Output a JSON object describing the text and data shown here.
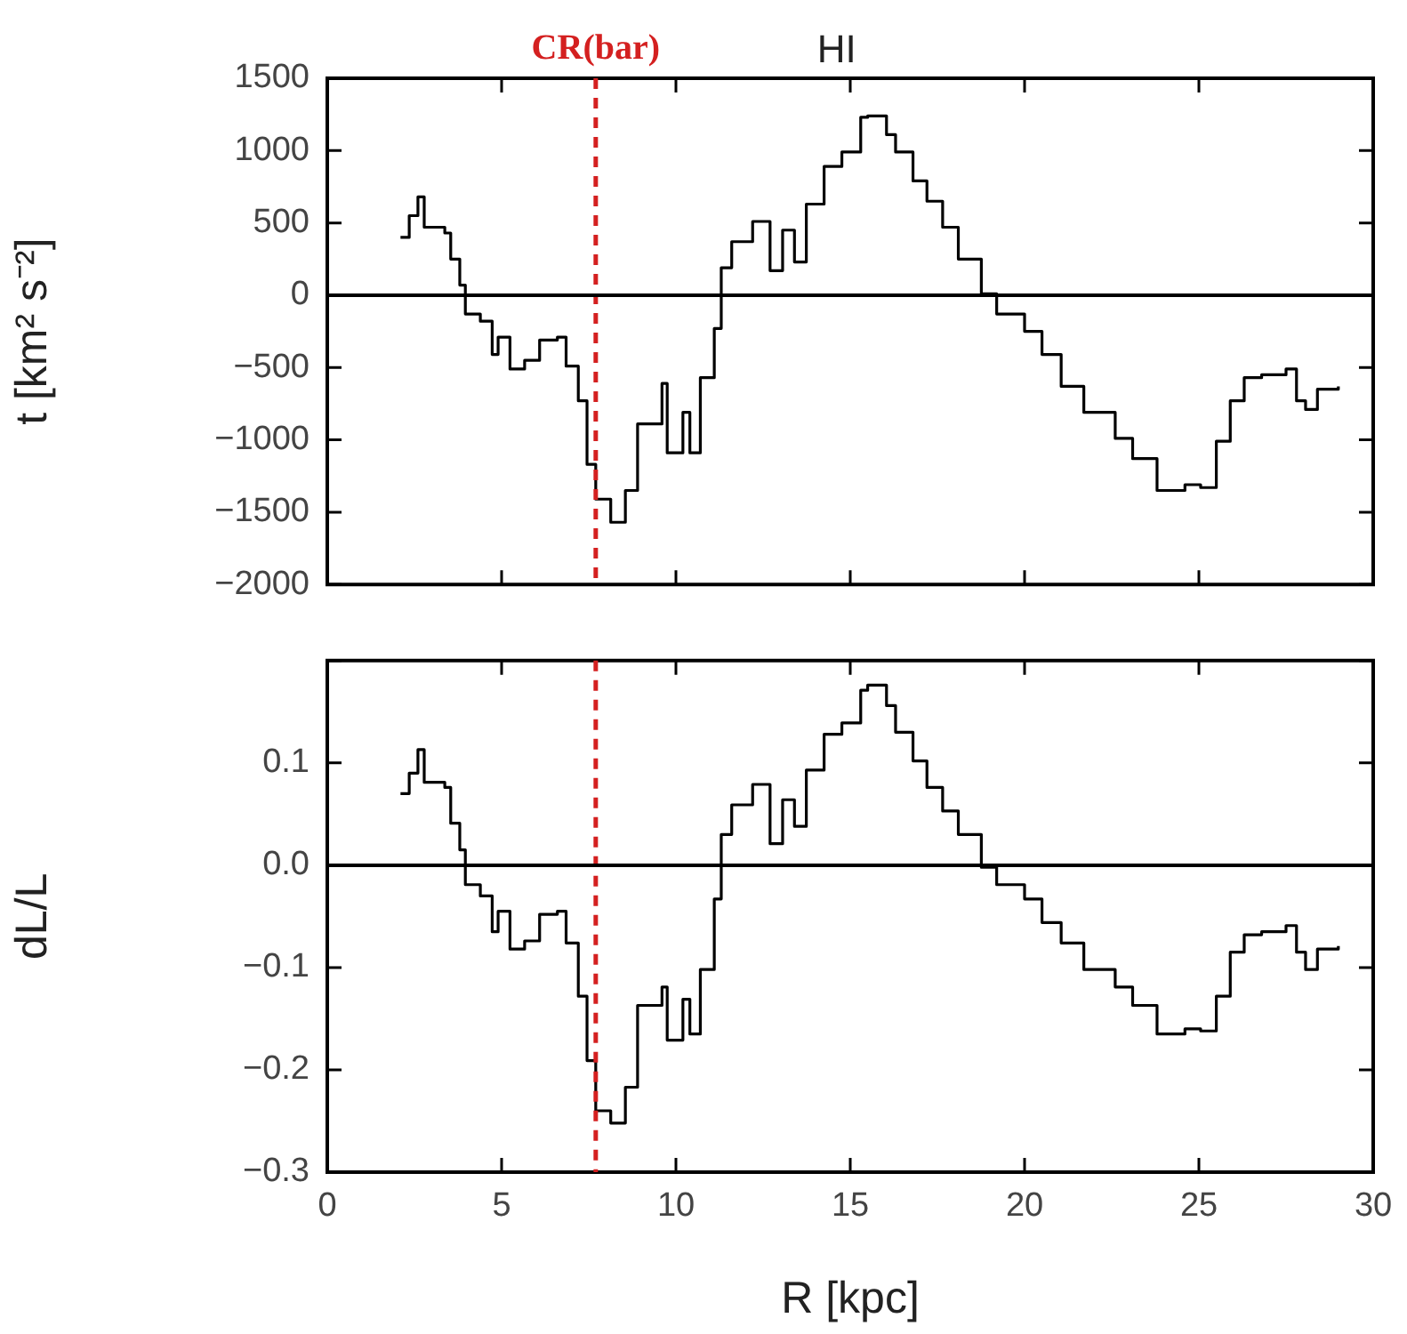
{
  "chart_data": [
    {
      "type": "step",
      "ylabel": "t [km² s⁻²]",
      "xlim": [
        0,
        30
      ],
      "xticks": [
        0,
        5,
        10,
        15,
        20,
        25,
        30
      ],
      "ylim": [
        -2000,
        1500
      ],
      "yticks": [
        -2000,
        -1500,
        -1000,
        -500,
        0,
        500,
        1000,
        1500
      ],
      "tick_labels": "y",
      "grid": false,
      "legend": false,
      "marker": "none",
      "line_style": "solid",
      "series": [
        {
          "color": "#000000",
          "x": [
            2.1,
            2.35,
            2.6,
            2.78,
            3.37,
            3.54,
            3.8,
            3.96,
            4.39,
            4.73,
            4.9,
            5.24,
            5.66,
            6.09,
            6.6,
            6.85,
            7.2,
            7.45,
            7.7,
            8.13,
            8.55,
            8.9,
            9.6,
            9.75,
            10.2,
            10.4,
            10.7,
            11.1,
            11.3,
            11.6,
            12.2,
            12.7,
            13.06,
            13.4,
            13.74,
            14.25,
            14.76,
            15.3,
            15.5,
            16.04,
            16.3,
            16.8,
            17.2,
            17.65,
            18.1,
            18.76,
            19.2,
            20.0,
            20.5,
            21.05,
            21.7,
            22.6,
            23.1,
            23.8,
            24.6,
            25.05,
            25.5,
            25.9,
            26.3,
            26.8,
            27.5,
            27.8,
            28.06,
            28.4,
            29.0
          ],
          "values": [
            400,
            550,
            680,
            470,
            430,
            250,
            70,
            -130,
            -180,
            -410,
            -290,
            -510,
            -450,
            -310,
            -290,
            -490,
            -730,
            -1170,
            -1410,
            -1570,
            -1350,
            -890,
            -610,
            -1090,
            -810,
            -1090,
            -570,
            -230,
            190,
            370,
            510,
            170,
            450,
            230,
            630,
            890,
            990,
            1230,
            1240,
            1110,
            990,
            790,
            650,
            470,
            250,
            10,
            -130,
            -250,
            -410,
            -630,
            -810,
            -990,
            -1130,
            -1350,
            -1310,
            -1330,
            -1010,
            -730,
            -570,
            -550,
            -510,
            -730,
            -790,
            -650,
            -630
          ]
        }
      ],
      "ref_lines": [
        {
          "axis": "x",
          "value": 7.7,
          "label": "CR(bar)",
          "color": "#d42020",
          "line_style": "dashed"
        },
        {
          "axis": "y",
          "value": 0,
          "color": "#000000",
          "line_style": "solid"
        }
      ],
      "annotations": [
        "HI"
      ]
    },
    {
      "type": "step",
      "xlabel": "R [kpc]",
      "ylabel": "dL/L",
      "xlim": [
        0,
        30
      ],
      "xticks": [
        0,
        5,
        10,
        15,
        20,
        25,
        30
      ],
      "ylim": [
        -0.3,
        0.2
      ],
      "yticks": [
        -0.3,
        -0.2,
        -0.1,
        {
          "value": 0,
          "label": "0.0"
        },
        0.1,
        {
          "value": 0.2,
          "label": null
        }
      ],
      "grid": false,
      "legend": false,
      "marker": "none",
      "line_style": "solid",
      "series": [
        {
          "color": "#000000",
          "x": [
            2.1,
            2.35,
            2.6,
            2.78,
            3.37,
            3.54,
            3.8,
            3.96,
            4.39,
            4.73,
            4.9,
            5.24,
            5.66,
            6.09,
            6.6,
            6.85,
            7.2,
            7.45,
            7.7,
            8.13,
            8.55,
            8.9,
            9.6,
            9.75,
            10.2,
            10.4,
            10.7,
            11.1,
            11.3,
            11.6,
            12.2,
            12.7,
            13.06,
            13.4,
            13.74,
            14.25,
            14.76,
            15.3,
            15.5,
            16.04,
            16.3,
            16.8,
            17.2,
            17.65,
            18.1,
            18.76,
            19.2,
            20.0,
            20.5,
            21.05,
            21.7,
            22.6,
            23.1,
            23.8,
            24.6,
            25.05,
            25.5,
            25.9,
            26.3,
            26.8,
            27.5,
            27.8,
            28.06,
            28.4,
            29.0
          ],
          "values": [
            0.07,
            0.09,
            0.113,
            0.081,
            0.076,
            0.041,
            0.015,
            -0.019,
            -0.03,
            -0.065,
            -0.045,
            -0.082,
            -0.074,
            -0.048,
            -0.045,
            -0.076,
            -0.128,
            -0.191,
            -0.24,
            -0.252,
            -0.217,
            -0.137,
            -0.119,
            -0.171,
            -0.131,
            -0.165,
            -0.102,
            -0.033,
            0.03,
            0.059,
            0.079,
            0.021,
            0.064,
            0.038,
            0.093,
            0.128,
            0.139,
            0.171,
            0.176,
            0.156,
            0.13,
            0.102,
            0.076,
            0.053,
            0.03,
            -0.002,
            -0.019,
            -0.033,
            -0.056,
            -0.076,
            -0.102,
            -0.119,
            -0.137,
            -0.165,
            -0.16,
            -0.162,
            -0.128,
            -0.085,
            -0.068,
            -0.065,
            -0.059,
            -0.085,
            -0.102,
            -0.082,
            -0.079
          ]
        }
      ],
      "ref_lines": [
        {
          "axis": "x",
          "value": 7.7,
          "color": "#d42020",
          "line_style": "dashed"
        },
        {
          "axis": "y",
          "value": 0,
          "color": "#000000",
          "line_style": "solid"
        }
      ]
    }
  ]
}
